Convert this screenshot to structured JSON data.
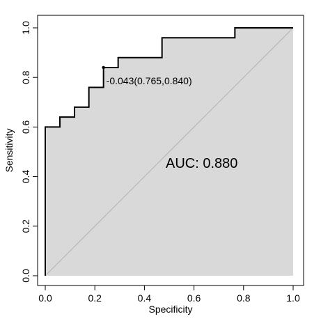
{
  "chart_data": {
    "type": "line",
    "title": "",
    "xlabel": "Specificity",
    "ylabel": "Sensitivity",
    "xlim": [
      0,
      1
    ],
    "ylim": [
      0,
      1
    ],
    "x_ticks": [
      "0.0",
      "0.2",
      "0.4",
      "0.6",
      "0.8",
      "1.0"
    ],
    "y_ticks": [
      "0.0",
      "0.2",
      "0.4",
      "0.6",
      "0.8",
      "1.0"
    ],
    "grid": false,
    "legend": "none",
    "area_fill_color": "#d9d9d9",
    "curve_color": "#000000",
    "reference_line_color": "#b3b3b3",
    "series": [
      {
        "x": [
          0.0,
          0.0,
          0.059,
          0.059,
          0.118,
          0.118,
          0.176,
          0.176,
          0.235,
          0.235,
          0.294,
          0.294,
          0.471,
          0.471,
          0.765,
          0.765,
          1.0
        ],
        "y": [
          0.0,
          0.6,
          0.6,
          0.64,
          0.64,
          0.68,
          0.68,
          0.76,
          0.76,
          0.84,
          0.84,
          0.88,
          0.88,
          0.96,
          0.96,
          1.0,
          1.0
        ]
      }
    ],
    "threshold_point": {
      "x": 0.235,
      "y": 0.84,
      "label": "-0.043(0.765,0.840)"
    },
    "auc_label": "AUC: 0.880",
    "auc_label_position": {
      "x": 0.5,
      "y": 0.5
    }
  }
}
